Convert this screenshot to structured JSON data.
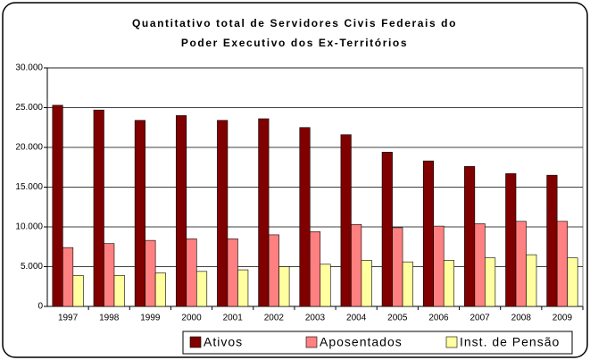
{
  "chart_data": {
    "type": "bar",
    "title": [
      "Quantitativo total de Servidores Civis Federais do",
      "Poder Executivo dos Ex-Territórios"
    ],
    "categories": [
      "1997",
      "1998",
      "1999",
      "2000",
      "2001",
      "2002",
      "2003",
      "2004",
      "2005",
      "2006",
      "2007",
      "2008",
      "2009"
    ],
    "series": [
      {
        "name": "Ativos",
        "color": "#800000",
        "values": [
          25300,
          24700,
          23400,
          24000,
          23400,
          23600,
          22500,
          21600,
          19400,
          18300,
          17600,
          16700,
          16500
        ]
      },
      {
        "name": "Aposentados",
        "color": "#ff8080",
        "values": [
          7400,
          7900,
          8300,
          8500,
          8500,
          9000,
          9400,
          10300,
          9900,
          10100,
          10400,
          10700,
          10700
        ]
      },
      {
        "name": "Inst. de Pensão",
        "color": "#ffffa0",
        "values": [
          3900,
          3900,
          4200,
          4400,
          4600,
          5000,
          5300,
          5800,
          5600,
          5800,
          6100,
          6500,
          6100
        ]
      }
    ],
    "ylim": [
      0,
      30000
    ],
    "yticks": [
      0,
      {
        "value": 5000,
        "label": "5.000"
      },
      {
        "value": 10000,
        "label": "10.000"
      },
      {
        "value": 15000,
        "label": "15.000"
      },
      {
        "value": 20000,
        "label": "20.000"
      },
      {
        "value": 25000,
        "label": "25.000"
      },
      {
        "value": 30000,
        "label": "30.000"
      }
    ],
    "grid": true,
    "legend": "bottom"
  }
}
